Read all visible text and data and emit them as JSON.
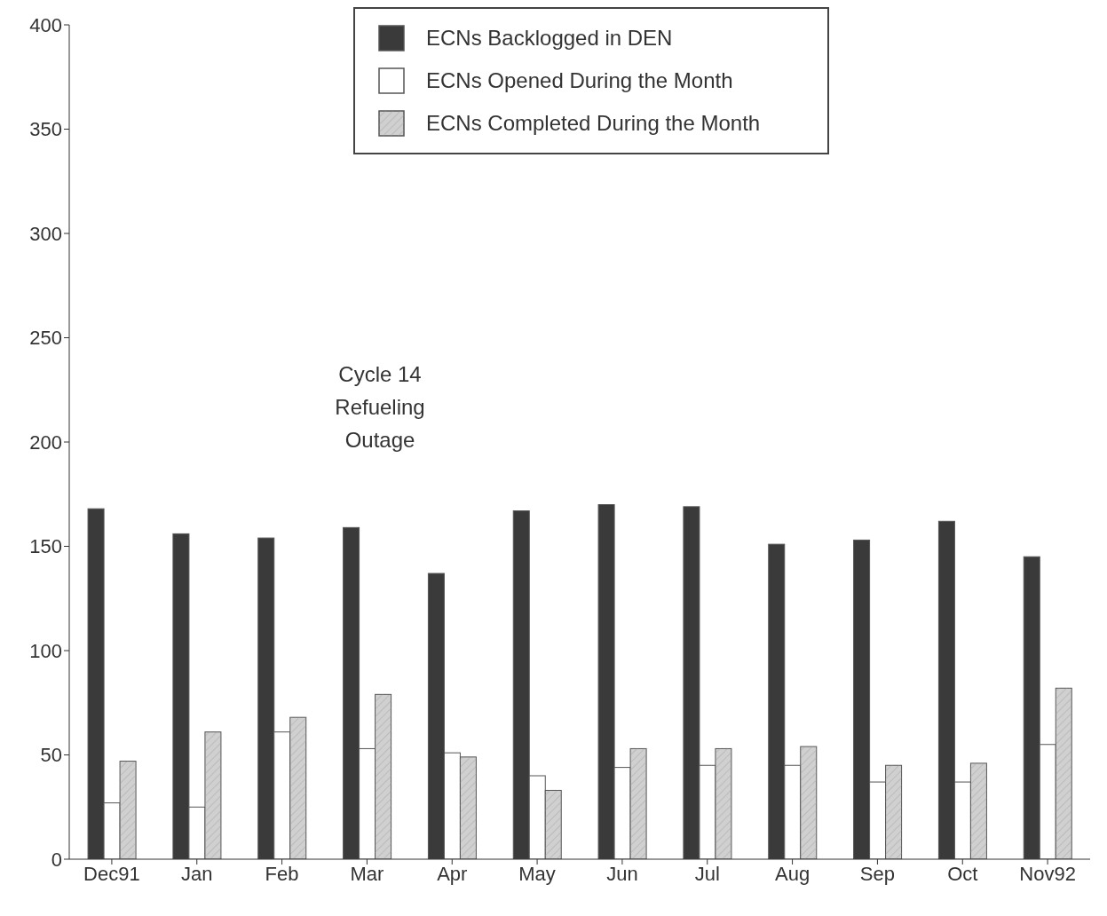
{
  "chart_data": {
    "type": "bar",
    "categories": [
      "Dec91",
      "Jan",
      "Feb",
      "Mar",
      "Apr",
      "May",
      "Jun",
      "Jul",
      "Aug",
      "Sep",
      "Oct",
      "Nov92"
    ],
    "series": [
      {
        "name": "ECNs Backlogged in DEN",
        "color": "#3a3a3a",
        "values": [
          168,
          156,
          154,
          159,
          137,
          167,
          170,
          169,
          151,
          153,
          162,
          145
        ]
      },
      {
        "name": "ECNs Opened During the Month",
        "color": "#ffffff",
        "values": [
          27,
          25,
          61,
          53,
          51,
          40,
          44,
          45,
          45,
          37,
          37,
          55
        ]
      },
      {
        "name": "ECNs Completed During the Month",
        "color": "#d0d0d0",
        "values": [
          47,
          61,
          68,
          79,
          49,
          33,
          53,
          53,
          54,
          45,
          46,
          82
        ]
      }
    ],
    "ylim": [
      0,
      400
    ],
    "yticks": [
      0,
      50,
      100,
      150,
      200,
      250,
      300,
      350,
      400
    ],
    "legend": "top",
    "annotations": [
      "Cycle 14 Refueling Outage"
    ]
  }
}
